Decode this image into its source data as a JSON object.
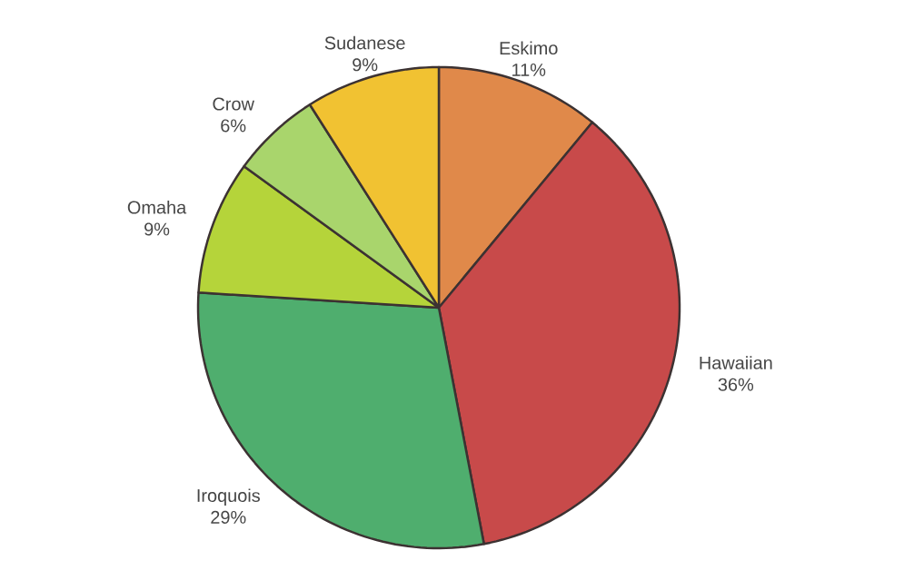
{
  "chart_data": {
    "type": "pie",
    "categories": [
      "Eskimo",
      "Hawaiian",
      "Iroquois",
      "Omaha",
      "Crow",
      "Sudanese"
    ],
    "values": [
      11,
      36,
      29,
      9,
      6,
      9
    ],
    "value_labels": [
      "11%",
      "36%",
      "29%",
      "9%",
      "6%",
      "9%"
    ],
    "colors": [
      "#e0894a",
      "#c84a4a",
      "#4fae6e",
      "#b5d43a",
      "#a9d56c",
      "#f1c232"
    ]
  }
}
